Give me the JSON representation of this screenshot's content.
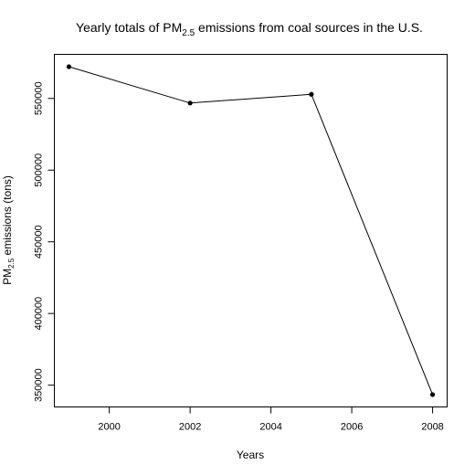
{
  "chart_data": {
    "type": "line",
    "title_main": "Yearly totals of PM",
    "title_sub": "2.5",
    "title_rest": " emissions from coal sources in the U.S.",
    "xlabel": "Years",
    "ylabel_main": "PM",
    "ylabel_sub": "2.5",
    "ylabel_rest": " emissions (tons)",
    "x": [
      1999,
      2002,
      2005,
      2008
    ],
    "y": [
      572126,
      546789,
      552881,
      343432
    ],
    "xlim": [
      1998.64,
      2008.36
    ],
    "ylim": [
      334808,
      580750
    ],
    "x_ticks": [
      2000,
      2002,
      2004,
      2006,
      2008
    ],
    "x_tick_labels": [
      "2000",
      "2002",
      "2004",
      "2006",
      "2008"
    ],
    "y_ticks": [
      350000,
      400000,
      450000,
      500000,
      550000
    ],
    "y_tick_labels": [
      "350000",
      "400000",
      "450000",
      "500000",
      "550000"
    ],
    "grid": false,
    "line_color": "#000000",
    "marker_color": "#000000"
  }
}
